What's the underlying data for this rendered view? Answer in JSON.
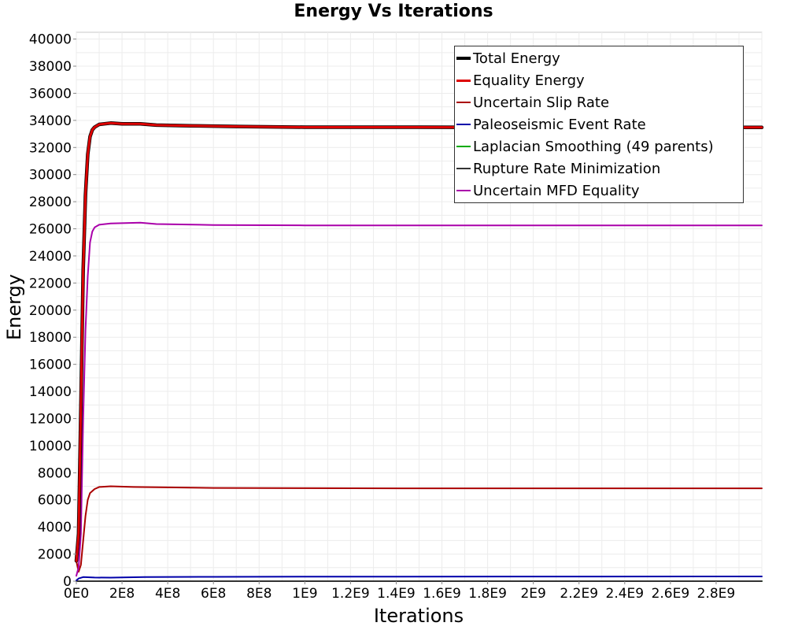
{
  "chart_data": {
    "type": "line",
    "title": "Energy Vs Iterations",
    "xlabel": "Iterations",
    "ylabel": "Energy",
    "xlim": [
      0,
      3000000000
    ],
    "ylim": [
      0,
      40500
    ],
    "x_ticks": [
      {
        "value": 0,
        "label": "0E0"
      },
      {
        "value": 200000000,
        "label": "2E8"
      },
      {
        "value": 400000000,
        "label": "4E8"
      },
      {
        "value": 600000000,
        "label": "6E8"
      },
      {
        "value": 800000000,
        "label": "8E8"
      },
      {
        "value": 1000000000,
        "label": "1E9"
      },
      {
        "value": 1200000000,
        "label": "1.2E9"
      },
      {
        "value": 1400000000,
        "label": "1.4E9"
      },
      {
        "value": 1600000000,
        "label": "1.6E9"
      },
      {
        "value": 1800000000,
        "label": "1.8E9"
      },
      {
        "value": 2000000000,
        "label": "2E9"
      },
      {
        "value": 2200000000,
        "label": "2.2E9"
      },
      {
        "value": 2400000000,
        "label": "2.4E9"
      },
      {
        "value": 2600000000,
        "label": "2.6E9"
      },
      {
        "value": 2800000000,
        "label": "2.8E9"
      }
    ],
    "y_ticks": [
      0,
      2000,
      4000,
      6000,
      8000,
      10000,
      12000,
      14000,
      16000,
      18000,
      20000,
      22000,
      24000,
      26000,
      28000,
      30000,
      32000,
      34000,
      36000,
      38000,
      40000
    ],
    "grid": true,
    "legend_position": "top-right",
    "series": [
      {
        "name": "Total Energy",
        "color": "#000000",
        "points": [
          [
            0,
            1500
          ],
          [
            10000000,
            3500
          ],
          [
            20000000,
            13000
          ],
          [
            30000000,
            23000
          ],
          [
            40000000,
            28500
          ],
          [
            50000000,
            31500
          ],
          [
            60000000,
            32800
          ],
          [
            70000000,
            33300
          ],
          [
            80000000,
            33500
          ],
          [
            100000000,
            33700
          ],
          [
            150000000,
            33800
          ],
          [
            200000000,
            33750
          ],
          [
            280000000,
            33750
          ],
          [
            350000000,
            33650
          ],
          [
            500000000,
            33600
          ],
          [
            700000000,
            33550
          ],
          [
            1000000000,
            33500
          ],
          [
            1500000000,
            33500
          ],
          [
            2000000000,
            33480
          ],
          [
            2500000000,
            33480
          ],
          [
            3000000000,
            33480
          ]
        ]
      },
      {
        "name": "Equality Energy",
        "color": "#dd0000",
        "points": [
          [
            0,
            1500
          ],
          [
            10000000,
            3500
          ],
          [
            20000000,
            13000
          ],
          [
            30000000,
            23000
          ],
          [
            40000000,
            28500
          ],
          [
            50000000,
            31500
          ],
          [
            60000000,
            32800
          ],
          [
            70000000,
            33300
          ],
          [
            80000000,
            33500
          ],
          [
            100000000,
            33700
          ],
          [
            150000000,
            33800
          ],
          [
            200000000,
            33750
          ],
          [
            280000000,
            33750
          ],
          [
            350000000,
            33650
          ],
          [
            500000000,
            33600
          ],
          [
            700000000,
            33550
          ],
          [
            1000000000,
            33500
          ],
          [
            1500000000,
            33500
          ],
          [
            2000000000,
            33480
          ],
          [
            2500000000,
            33480
          ],
          [
            3000000000,
            33480
          ]
        ]
      },
      {
        "name": "Uncertain Slip Rate",
        "color": "#aa0000",
        "points": [
          [
            0,
            1500
          ],
          [
            10000000,
            700
          ],
          [
            20000000,
            1200
          ],
          [
            30000000,
            3000
          ],
          [
            40000000,
            4800
          ],
          [
            50000000,
            6000
          ],
          [
            60000000,
            6500
          ],
          [
            80000000,
            6800
          ],
          [
            100000000,
            6950
          ],
          [
            150000000,
            7000
          ],
          [
            250000000,
            6950
          ],
          [
            400000000,
            6920
          ],
          [
            600000000,
            6880
          ],
          [
            1000000000,
            6860
          ],
          [
            1500000000,
            6850
          ],
          [
            2000000000,
            6850
          ],
          [
            3000000000,
            6850
          ]
        ]
      },
      {
        "name": "Paleoseismic Event Rate",
        "color": "#0000aa",
        "points": [
          [
            0,
            50
          ],
          [
            10000000,
            200
          ],
          [
            30000000,
            300
          ],
          [
            80000000,
            270
          ],
          [
            150000000,
            260
          ],
          [
            300000000,
            300
          ],
          [
            600000000,
            320
          ],
          [
            1000000000,
            330
          ],
          [
            2000000000,
            340
          ],
          [
            3000000000,
            350
          ]
        ]
      },
      {
        "name": "Laplacian Smoothing (49 parents)",
        "color": "#00aa00",
        "points": [
          [
            0,
            0
          ],
          [
            3000000000,
            0
          ]
        ]
      },
      {
        "name": "Rupture Rate Minimization",
        "color": "#333333",
        "points": [
          [
            0,
            0
          ],
          [
            3000000000,
            0
          ]
        ]
      },
      {
        "name": "Uncertain MFD Equality",
        "color": "#aa00aa",
        "points": [
          [
            0,
            400
          ],
          [
            10000000,
            1000
          ],
          [
            20000000,
            3500
          ],
          [
            30000000,
            12000
          ],
          [
            40000000,
            18500
          ],
          [
            50000000,
            22500
          ],
          [
            60000000,
            25000
          ],
          [
            70000000,
            25800
          ],
          [
            80000000,
            26100
          ],
          [
            100000000,
            26300
          ],
          [
            150000000,
            26400
          ],
          [
            280000000,
            26450
          ],
          [
            350000000,
            26350
          ],
          [
            600000000,
            26280
          ],
          [
            1000000000,
            26250
          ],
          [
            2000000000,
            26250
          ],
          [
            3000000000,
            26250
          ]
        ]
      }
    ]
  }
}
